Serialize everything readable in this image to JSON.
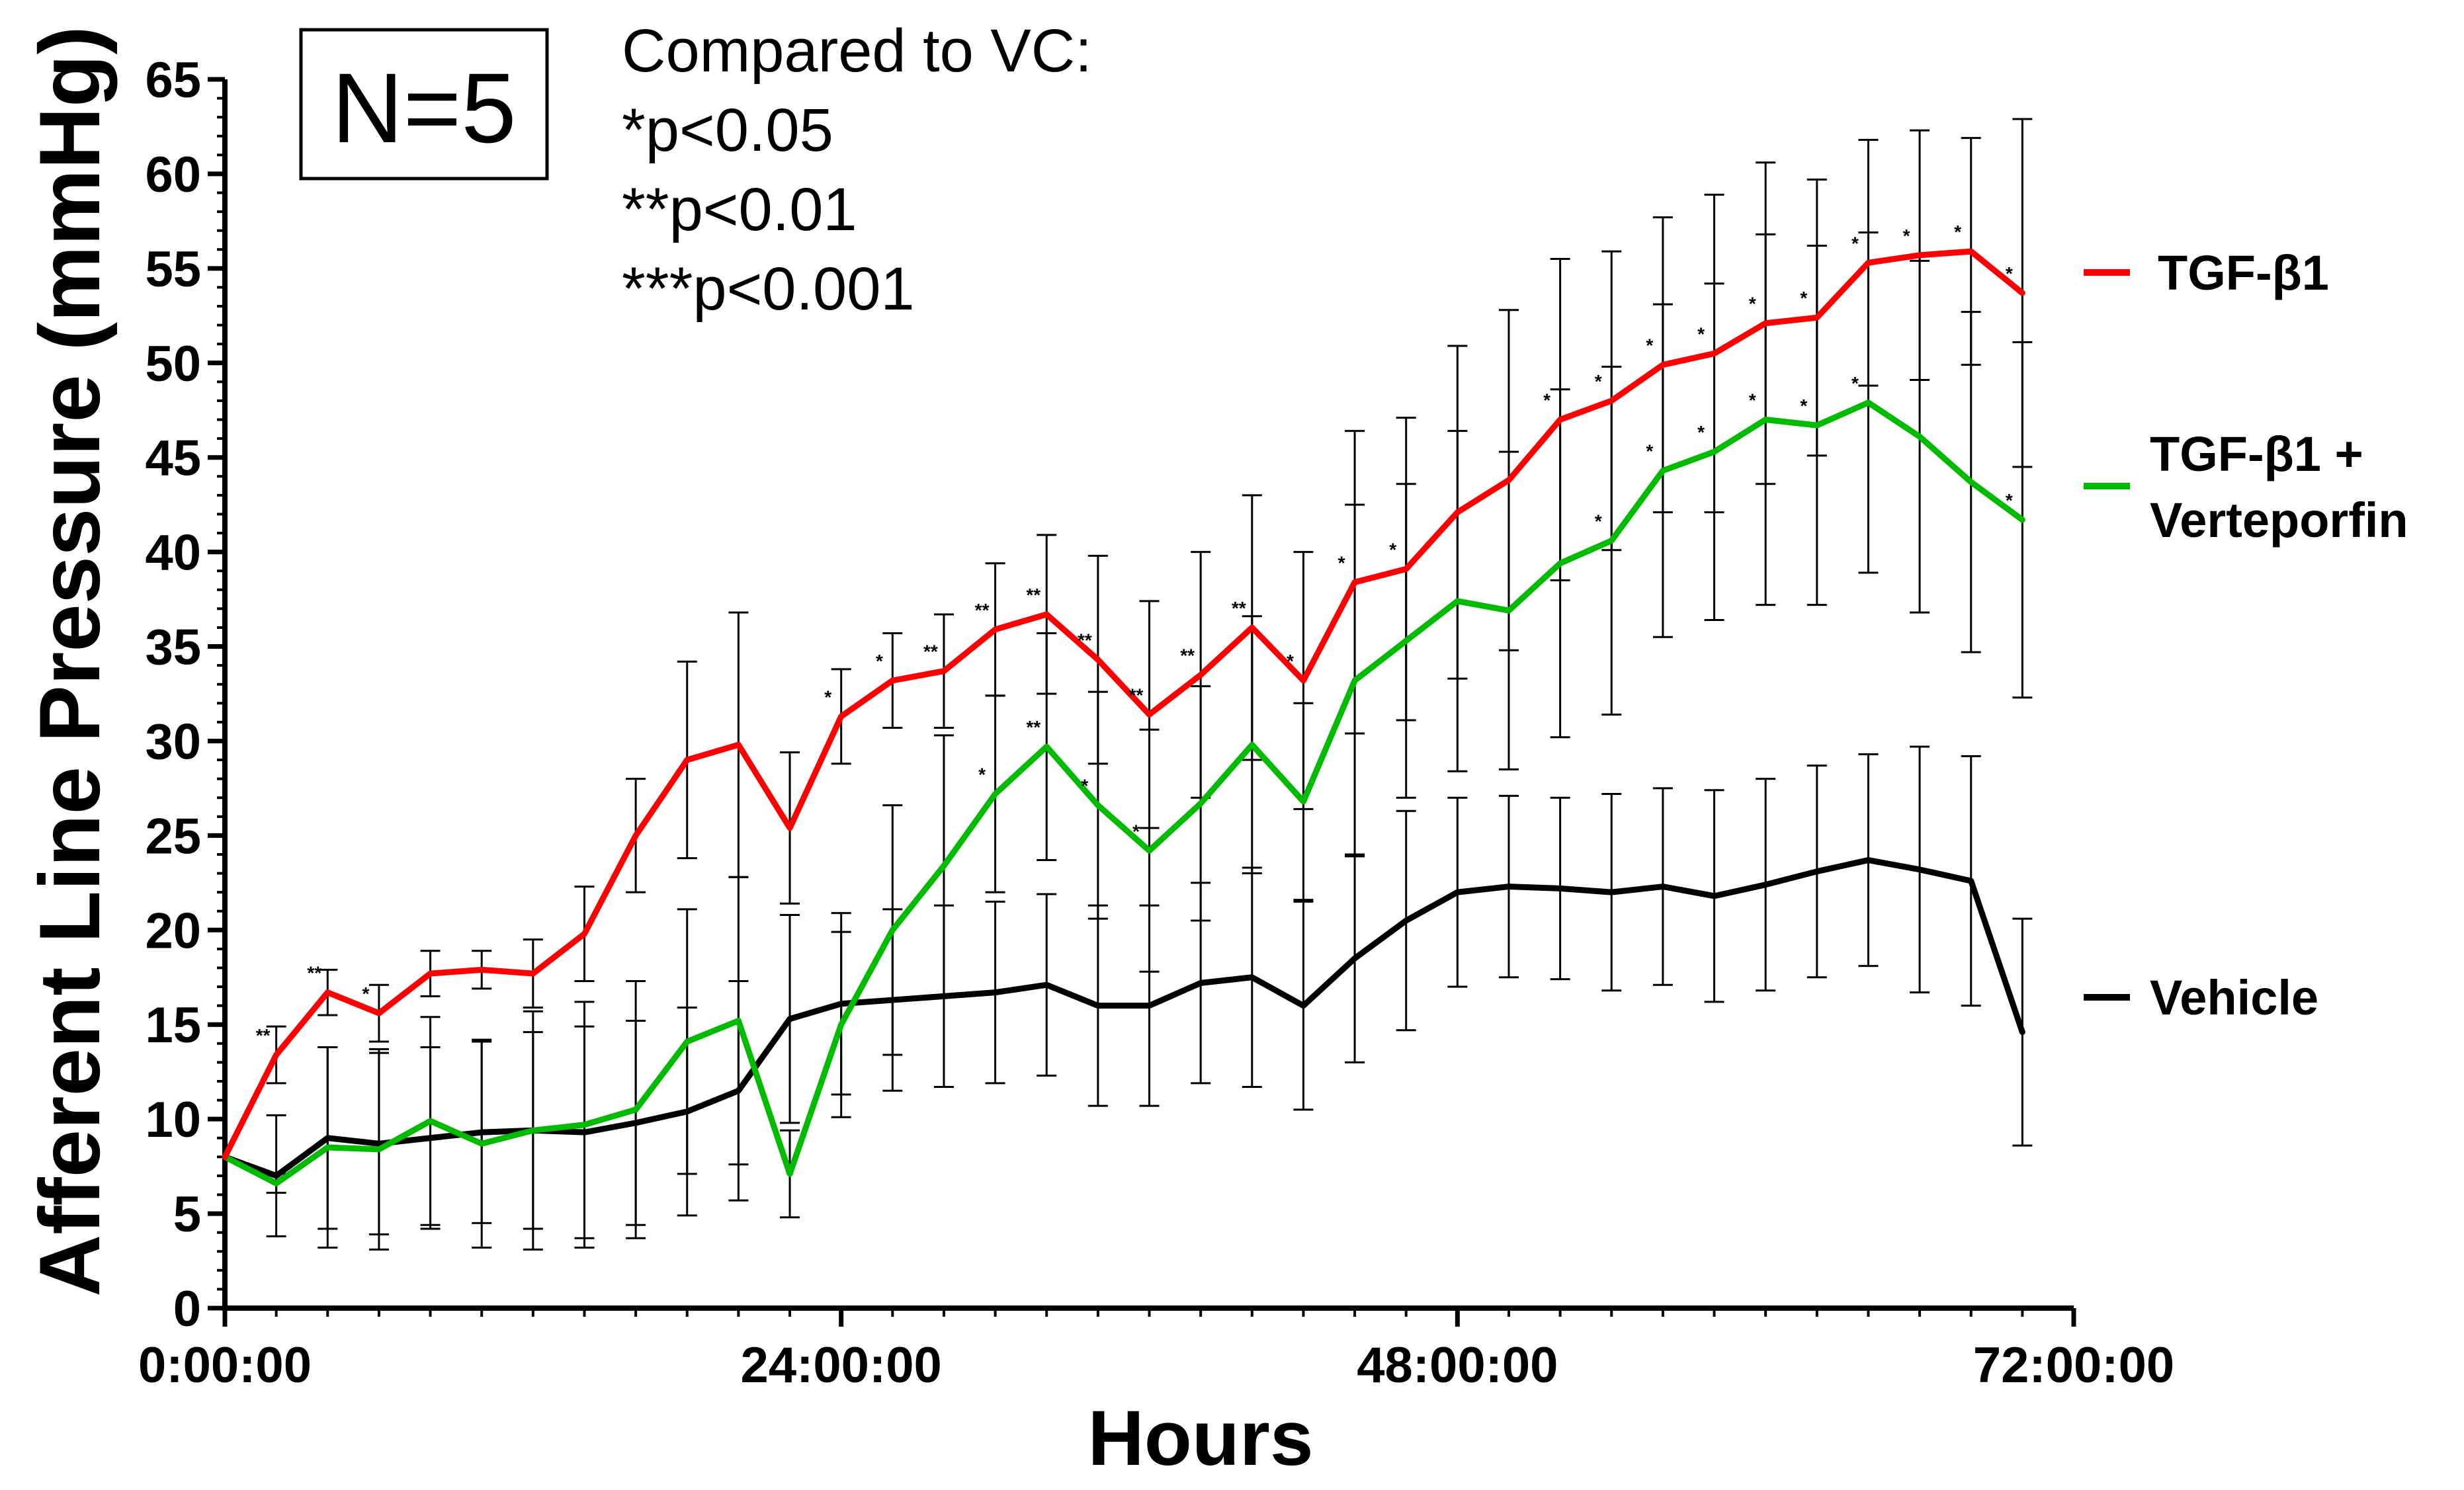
{
  "chart_data": {
    "type": "line",
    "xlabel": "Hours",
    "ylabel": "Afferent Line Pressure (mmHg)",
    "ylim": [
      0,
      65
    ],
    "yticks": [
      0,
      5,
      10,
      15,
      20,
      25,
      30,
      35,
      40,
      45,
      50,
      55,
      60,
      65
    ],
    "xlim": [
      0,
      72
    ],
    "xticks": [
      {
        "value": 0,
        "label": "0:00:00"
      },
      {
        "value": 24,
        "label": "24:00:00"
      },
      {
        "value": 48,
        "label": "48:00:00"
      },
      {
        "value": 72,
        "label": "72:00:00"
      }
    ],
    "x": [
      0,
      2,
      4,
      6,
      8,
      10,
      12,
      14,
      16,
      18,
      20,
      22,
      24,
      26,
      28,
      30,
      32,
      34,
      36,
      38,
      40,
      42,
      44,
      46,
      48,
      50,
      52,
      54,
      56,
      58,
      60,
      62,
      64,
      66,
      68,
      70
    ],
    "series": [
      {
        "name": "TGF-β1",
        "color": "#ff0000",
        "values": [
          8.0,
          13.4,
          16.7,
          15.6,
          17.7,
          17.9,
          17.7,
          19.8,
          25.0,
          29.0,
          29.8,
          25.4,
          31.3,
          33.2,
          33.7,
          35.9,
          36.7,
          34.3,
          31.4,
          33.5,
          36.0,
          33.2,
          38.4,
          39.1,
          42.1,
          43.8,
          47.0,
          48.0,
          49.9,
          50.5,
          52.1,
          52.4,
          55.3,
          55.7,
          55.9,
          53.7
        ],
        "errors": [
          0,
          1.5,
          1.2,
          1.5,
          1.2,
          1.0,
          1.8,
          2.5,
          3.0,
          5.2,
          7.0,
          4.0,
          2.5,
          2.5,
          3.0,
          3.5,
          4.2,
          5.5,
          6.0,
          6.5,
          7.0,
          6.8,
          8.0,
          8.0,
          8.8,
          9.0,
          8.5,
          7.9,
          7.8,
          8.4,
          8.5,
          7.3,
          6.5,
          6.6,
          6.0,
          9.2
        ],
        "annotations": [
          "",
          "**",
          "**",
          "*",
          "",
          "",
          "",
          "",
          "",
          "",
          "",
          "",
          "*",
          "*",
          "**",
          "**",
          "**",
          "**",
          "**",
          "**",
          "**",
          "*",
          "*",
          "*",
          "",
          "",
          "*",
          "*",
          "*",
          "*",
          "*",
          "*",
          "*",
          "*",
          "*",
          "*"
        ]
      },
      {
        "name": "TGF-β1 + Verteporfin",
        "color": "#00bb00",
        "values": [
          8.0,
          6.6,
          8.5,
          8.4,
          9.9,
          8.7,
          9.4,
          9.7,
          10.5,
          14.1,
          15.2,
          7.1,
          15.0,
          20.0,
          23.4,
          27.2,
          29.7,
          26.6,
          24.2,
          26.7,
          29.8,
          26.8,
          33.2,
          35.3,
          37.4,
          36.9,
          39.4,
          40.6,
          44.3,
          45.3,
          47.0,
          46.7,
          47.9,
          46.1,
          43.7,
          41.7
        ],
        "errors": [
          0,
          0.5,
          5.3,
          5.3,
          5.5,
          5.5,
          6.3,
          6.5,
          6.8,
          7.0,
          7.6,
          2.3,
          4.9,
          6.6,
          6.9,
          5.2,
          6.0,
          6.0,
          6.4,
          6.2,
          6.8,
          5.2,
          9.3,
          8.3,
          9.0,
          8.4,
          9.2,
          9.2,
          8.8,
          8.9,
          9.8,
          9.5,
          9.0,
          9.3,
          9.0,
          9.4
        ],
        "annotations": [
          "",
          "",
          "",
          "",
          "",
          "",
          "",
          "",
          "",
          "",
          "",
          "",
          "",
          "",
          "",
          "*",
          "**",
          "*",
          "*",
          "",
          "",
          "",
          "",
          "",
          "",
          "",
          "",
          "*",
          "*",
          "*",
          "*",
          "*",
          "*",
          "",
          "",
          "*"
        ]
      },
      {
        "name": "Vehicle",
        "color": "#000000",
        "values": [
          8.0,
          7.0,
          9.0,
          8.7,
          9.0,
          9.3,
          9.4,
          9.3,
          9.8,
          10.4,
          11.5,
          15.3,
          16.1,
          16.3,
          16.5,
          16.7,
          17.1,
          16.0,
          16.0,
          17.2,
          17.5,
          16.0,
          18.5,
          20.5,
          22.0,
          22.3,
          22.2,
          22.0,
          22.3,
          21.8,
          22.4,
          23.1,
          23.7,
          23.2,
          22.6,
          14.6
        ],
        "errors": [
          0,
          3.2,
          4.8,
          4.8,
          4.8,
          4.8,
          5.2,
          5.6,
          5.4,
          5.5,
          5.8,
          5.5,
          4.8,
          4.8,
          4.8,
          4.8,
          4.8,
          5.3,
          5.3,
          5.3,
          5.8,
          5.5,
          5.5,
          5.8,
          5.0,
          4.8,
          4.8,
          5.2,
          5.2,
          5.6,
          5.6,
          5.6,
          5.6,
          6.5,
          6.6,
          6.0
        ]
      }
    ]
  },
  "annotations": {
    "sample_size": "N=5",
    "comparison_title": "Compared to VC:",
    "p_levels": [
      "*p<0.05",
      "**p<0.01",
      "***p<0.001"
    ]
  },
  "legend": {
    "tgf": "TGF-β1",
    "combo_line1": "TGF-β1 +",
    "combo_line2": "Verteporfin",
    "vehicle": "Vehicle"
  }
}
